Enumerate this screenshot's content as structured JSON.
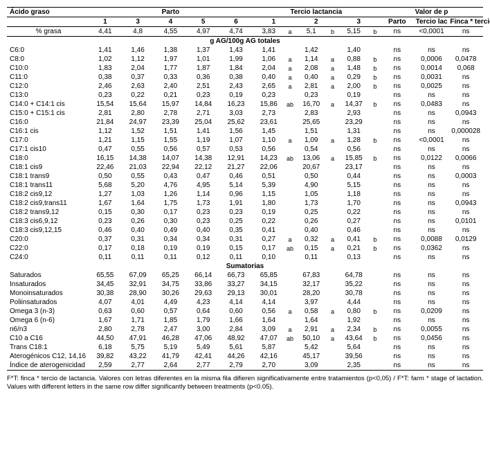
{
  "headers": {
    "acido": "Ácido graso",
    "parto": "Parto",
    "tercio": "Tercio lactancia",
    "valorp": "Valor de p",
    "parto_cols": [
      "1",
      "3",
      "4",
      "5",
      "6"
    ],
    "tercio_cols": [
      "1",
      "2",
      "3"
    ],
    "p_cols": [
      "Parto",
      "Tercio lac",
      "Finca * tercio"
    ],
    "pct_grasa_label": "% grasa",
    "pct_grasa_parto": [
      "4,41",
      "4,8",
      "4,55",
      "4,97",
      "4,74"
    ],
    "pct_grasa_tercio": [
      {
        "v": "3,83",
        "l": "a"
      },
      {
        "v": "5,1",
        "l": "b"
      },
      {
        "v": "5,15",
        "l": "b"
      }
    ],
    "pct_grasa_p": [
      "ns",
      "<0,0001",
      "ns"
    ],
    "section1": "g AG/100g AG totales",
    "section2": "Sumatorias"
  },
  "rows1": [
    {
      "label": "C6:0",
      "parto": [
        "1,41",
        "1,46",
        "1,38",
        "1,37",
        "1,43"
      ],
      "tercio": [
        {
          "v": "1,41",
          "l": ""
        },
        {
          "v": "1,42",
          "l": ""
        },
        {
          "v": "1,40",
          "l": ""
        }
      ],
      "p": [
        "ns",
        "ns",
        "ns"
      ]
    },
    {
      "label": "C8:0",
      "parto": [
        "1,02",
        "1,12",
        "1,97",
        "1,01",
        "1,99"
      ],
      "tercio": [
        {
          "v": "1,06",
          "l": "a"
        },
        {
          "v": "1,14",
          "l": "a"
        },
        {
          "v": "0,88",
          "l": "b"
        }
      ],
      "p": [
        "ns",
        "0,0006",
        "0,0478"
      ]
    },
    {
      "label": "C10:0",
      "parto": [
        "1,83",
        "2,04",
        "1,77",
        "1,87",
        "1,84"
      ],
      "tercio": [
        {
          "v": "2,04",
          "l": "a"
        },
        {
          "v": "2,08",
          "l": "a"
        },
        {
          "v": "1,48",
          "l": "b"
        }
      ],
      "p": [
        "ns",
        "0,0014",
        "0,068"
      ]
    },
    {
      "label": "C11:0",
      "parto": [
        "0,38",
        "0,37",
        "0,33",
        "0,36",
        "0,38"
      ],
      "tercio": [
        {
          "v": "0,40",
          "l": "a"
        },
        {
          "v": "0,40",
          "l": "a"
        },
        {
          "v": "0,29",
          "l": "b"
        }
      ],
      "p": [
        "ns",
        "0,0031",
        "ns"
      ]
    },
    {
      "label": "C12:0",
      "parto": [
        "2,46",
        "2,63",
        "2,40",
        "2,51",
        "2,43"
      ],
      "tercio": [
        {
          "v": "2,65",
          "l": "a"
        },
        {
          "v": "2,81",
          "l": "a"
        },
        {
          "v": "2,00",
          "l": "b"
        }
      ],
      "p": [
        "ns",
        "0,0025",
        "ns"
      ]
    },
    {
      "label": "C13:0",
      "parto": [
        "0,23",
        "0,22",
        "0,21",
        "0,23",
        "0,19"
      ],
      "tercio": [
        {
          "v": "0,23",
          "l": ""
        },
        {
          "v": "0,23",
          "l": ""
        },
        {
          "v": "0,19",
          "l": ""
        }
      ],
      "p": [
        "ns",
        "ns",
        "ns"
      ]
    },
    {
      "label": "C14:0 + C14:1 cis",
      "parto": [
        "15,54",
        "15,64",
        "15,97",
        "14,84",
        "16,23"
      ],
      "tercio": [
        {
          "v": "15,86",
          "l": "ab"
        },
        {
          "v": "16,70",
          "l": "a"
        },
        {
          "v": "14,37",
          "l": "b"
        }
      ],
      "p": [
        "ns",
        "0,0483",
        "ns"
      ]
    },
    {
      "label": "C15:0 + C15:1 cis",
      "parto": [
        "2,81",
        "2,80",
        "2,78",
        "2,71",
        "3,03"
      ],
      "tercio": [
        {
          "v": "2,73",
          "l": ""
        },
        {
          "v": "2,83",
          "l": ""
        },
        {
          "v": "2,93",
          "l": ""
        }
      ],
      "p": [
        "ns",
        "ns",
        "0,0943"
      ]
    },
    {
      "label": "C16:0",
      "parto": [
        "21,84",
        "24,97",
        "23,39",
        "25,04",
        "25,62"
      ],
      "tercio": [
        {
          "v": "23,61",
          "l": ""
        },
        {
          "v": "25,65",
          "l": ""
        },
        {
          "v": "23,29",
          "l": ""
        }
      ],
      "p": [
        "ns",
        "ns",
        "ns"
      ]
    },
    {
      "label": "C16:1 cis",
      "parto": [
        "1,12",
        "1,52",
        "1,51",
        "1,41",
        "1,56"
      ],
      "tercio": [
        {
          "v": "1,45",
          "l": ""
        },
        {
          "v": "1,51",
          "l": ""
        },
        {
          "v": "1,31",
          "l": ""
        }
      ],
      "p": [
        "ns",
        "ns",
        "0,000028"
      ]
    },
    {
      "label": "C17:0",
      "parto": [
        "1,21",
        "1,15",
        "1,55",
        "1,19",
        "1,07"
      ],
      "tercio": [
        {
          "v": "1,10",
          "l": "a"
        },
        {
          "v": "1,09",
          "l": "a"
        },
        {
          "v": "1,28",
          "l": "b"
        }
      ],
      "p": [
        "ns",
        "<0,0001",
        "ns"
      ]
    },
    {
      "label": "C17:1 cis10",
      "parto": [
        "0,47",
        "0,55",
        "0,56",
        "0,57",
        "0,53"
      ],
      "tercio": [
        {
          "v": "0,56",
          "l": ""
        },
        {
          "v": "0,54",
          "l": ""
        },
        {
          "v": "0,56",
          "l": ""
        }
      ],
      "p": [
        "ns",
        "ns",
        "ns"
      ]
    },
    {
      "label": "C18:0",
      "parto": [
        "16,15",
        "14,38",
        "14,07",
        "14,38",
        "12,91"
      ],
      "tercio": [
        {
          "v": "14,23",
          "l": "ab"
        },
        {
          "v": "13,06",
          "l": "a"
        },
        {
          "v": "15,85",
          "l": "b"
        }
      ],
      "p": [
        "ns",
        "0,0122",
        "0,0066"
      ]
    },
    {
      "label": "C18:1 cis9",
      "parto": [
        "22,46",
        "21,03",
        "22,94",
        "22,12",
        "21,27"
      ],
      "tercio": [
        {
          "v": "22,06",
          "l": ""
        },
        {
          "v": "20,67",
          "l": ""
        },
        {
          "v": "23,17",
          "l": ""
        }
      ],
      "p": [
        "ns",
        "ns",
        "ns"
      ]
    },
    {
      "label": "C18:1 trans9",
      "parto": [
        "0,50",
        "0,55",
        "0,43",
        "0,47",
        "0,46"
      ],
      "tercio": [
        {
          "v": "0,51",
          "l": ""
        },
        {
          "v": "0,50",
          "l": ""
        },
        {
          "v": "0,44",
          "l": ""
        }
      ],
      "p": [
        "ns",
        "ns",
        "0,0003"
      ]
    },
    {
      "label": "C18:1 trans11",
      "parto": [
        "5,68",
        "5,20",
        "4,76",
        "4,95",
        "5,14"
      ],
      "tercio": [
        {
          "v": "5,39",
          "l": ""
        },
        {
          "v": "4,90",
          "l": ""
        },
        {
          "v": "5,15",
          "l": ""
        }
      ],
      "p": [
        "ns",
        "ns",
        "ns"
      ]
    },
    {
      "label": "C18:2 cis9,12",
      "parto": [
        "1,27",
        "1,03",
        "1,26",
        "1,14",
        "0,96"
      ],
      "tercio": [
        {
          "v": "1,15",
          "l": ""
        },
        {
          "v": "1,05",
          "l": ""
        },
        {
          "v": "1,18",
          "l": ""
        }
      ],
      "p": [
        "ns",
        "ns",
        "ns"
      ]
    },
    {
      "label": "C18:2 cis9,trans11",
      "parto": [
        "1,67",
        "1,64",
        "1,75",
        "1,73",
        "1,91"
      ],
      "tercio": [
        {
          "v": "1,80",
          "l": ""
        },
        {
          "v": "1,73",
          "l": ""
        },
        {
          "v": "1,70",
          "l": ""
        }
      ],
      "p": [
        "ns",
        "ns",
        "0,0943"
      ]
    },
    {
      "label": "C18:2 trans9,12",
      "parto": [
        "0,15",
        "0,30",
        "0,17",
        "0,23",
        "0,23"
      ],
      "tercio": [
        {
          "v": "0,19",
          "l": ""
        },
        {
          "v": "0,25",
          "l": ""
        },
        {
          "v": "0,22",
          "l": ""
        }
      ],
      "p": [
        "ns",
        "ns",
        "ns"
      ]
    },
    {
      "label": "C18:3 cis6,9,12",
      "parto": [
        "0,23",
        "0,26",
        "0,30",
        "0,23",
        "0,25"
      ],
      "tercio": [
        {
          "v": "0,22",
          "l": ""
        },
        {
          "v": "0,26",
          "l": ""
        },
        {
          "v": "0,27",
          "l": ""
        }
      ],
      "p": [
        "ns",
        "ns",
        "0,0101"
      ]
    },
    {
      "label": "C18:3 cis9,12,15",
      "parto": [
        "0,46",
        "0,40",
        "0,49",
        "0,40",
        "0,35"
      ],
      "tercio": [
        {
          "v": "0,41",
          "l": ""
        },
        {
          "v": "0,40",
          "l": ""
        },
        {
          "v": "0,46",
          "l": ""
        }
      ],
      "p": [
        "ns",
        "ns",
        "ns"
      ]
    },
    {
      "label": "C20:0",
      "parto": [
        "0,37",
        "0,31",
        "0,34",
        "0,34",
        "0,31"
      ],
      "tercio": [
        {
          "v": "0,27",
          "l": "a"
        },
        {
          "v": "0,32",
          "l": "a"
        },
        {
          "v": "0,41",
          "l": "b"
        }
      ],
      "p": [
        "ns",
        "0,0088",
        "0,0129"
      ]
    },
    {
      "label": "C22:0",
      "parto": [
        "0,17",
        "0,18",
        "0,19",
        "0,19",
        "0,15"
      ],
      "tercio": [
        {
          "v": "0,17",
          "l": "ab"
        },
        {
          "v": "0,15",
          "l": "a"
        },
        {
          "v": "0,21",
          "l": "b"
        }
      ],
      "p": [
        "ns",
        "0,0362",
        "ns"
      ]
    },
    {
      "label": "C24:0",
      "parto": [
        "0,11",
        "0,11",
        "0,11",
        "0,12",
        "0,11"
      ],
      "tercio": [
        {
          "v": "0,10",
          "l": ""
        },
        {
          "v": "0,11",
          "l": ""
        },
        {
          "v": "0,13",
          "l": ""
        }
      ],
      "p": [
        "ns",
        "ns",
        "ns"
      ]
    }
  ],
  "rows2": [
    {
      "label": "Saturados",
      "parto": [
        "65,55",
        "67,09",
        "65,25",
        "66,14",
        "66,73"
      ],
      "tercio": [
        {
          "v": "65,85",
          "l": ""
        },
        {
          "v": "67,83",
          "l": ""
        },
        {
          "v": "64,78",
          "l": ""
        }
      ],
      "p": [
        "ns",
        "ns",
        "ns"
      ]
    },
    {
      "label": "Insaturados",
      "parto": [
        "34,45",
        "32,91",
        "34,75",
        "33,86",
        "33,27"
      ],
      "tercio": [
        {
          "v": "34,15",
          "l": ""
        },
        {
          "v": "32,17",
          "l": ""
        },
        {
          "v": "35,22",
          "l": ""
        }
      ],
      "p": [
        "ns",
        "ns",
        "ns"
      ]
    },
    {
      "label": "Monoinsaturados",
      "parto": [
        "30,38",
        "28,90",
        "30,26",
        "29,63",
        "29,13"
      ],
      "tercio": [
        {
          "v": "30,01",
          "l": ""
        },
        {
          "v": "28,20",
          "l": ""
        },
        {
          "v": "30,78",
          "l": ""
        }
      ],
      "p": [
        "ns",
        "ns",
        "ns"
      ]
    },
    {
      "label": "Poliinsaturados",
      "parto": [
        "4,07",
        "4,01",
        "4,49",
        "4,23",
        "4,14"
      ],
      "tercio": [
        {
          "v": "4,14",
          "l": ""
        },
        {
          "v": "3,97",
          "l": ""
        },
        {
          "v": "4,44",
          "l": ""
        }
      ],
      "p": [
        "ns",
        "ns",
        "ns"
      ]
    },
    {
      "label": "Omega 3 (n-3)",
      "parto": [
        "0,63",
        "0,60",
        "0,57",
        "0,64",
        "0,60"
      ],
      "tercio": [
        {
          "v": "0,56",
          "l": "a"
        },
        {
          "v": "0,58",
          "l": "a"
        },
        {
          "v": "0,80",
          "l": "b"
        }
      ],
      "p": [
        "ns",
        "0,0209",
        "ns"
      ]
    },
    {
      "label": "Omega 6 (n-6)",
      "parto": [
        "1,67",
        "1,71",
        "1,85",
        "1,79",
        "1,66"
      ],
      "tercio": [
        {
          "v": "1,64",
          "l": ""
        },
        {
          "v": "1,64",
          "l": ""
        },
        {
          "v": "1,92",
          "l": ""
        }
      ],
      "p": [
        "ns",
        "ns",
        "ns"
      ]
    },
    {
      "label": "n6/n3",
      "parto": [
        "2,80",
        "2,78",
        "2,47",
        "3,00",
        "2,84"
      ],
      "tercio": [
        {
          "v": "3,09",
          "l": "a"
        },
        {
          "v": "2,91",
          "l": "a"
        },
        {
          "v": "2,34",
          "l": "b"
        }
      ],
      "p": [
        "ns",
        "0,0055",
        "ns"
      ]
    },
    {
      "label": "C10 a C16",
      "parto": [
        "44,50",
        "47,91",
        "46,28",
        "47,06",
        "48,92"
      ],
      "tercio": [
        {
          "v": "47,07",
          "l": "ab"
        },
        {
          "v": "50,10",
          "l": "a"
        },
        {
          "v": "43,64",
          "l": "b"
        }
      ],
      "p": [
        "ns",
        "0,0456",
        "ns"
      ]
    },
    {
      "label": "Trans C18:1",
      "parto": [
        "6,18",
        "5,75",
        "5,19",
        "5,49",
        "5,61"
      ],
      "tercio": [
        {
          "v": "5,87",
          "l": ""
        },
        {
          "v": "5,42",
          "l": ""
        },
        {
          "v": "5,64",
          "l": ""
        }
      ],
      "p": [
        "ns",
        "ns",
        "ns"
      ]
    },
    {
      "label": "Aterogénicos C12, 14,16",
      "parto": [
        "39,82",
        "43,22",
        "41,79",
        "42,41",
        "44,26"
      ],
      "tercio": [
        {
          "v": "42,16",
          "l": ""
        },
        {
          "v": "45,17",
          "l": ""
        },
        {
          "v": "39,56",
          "l": ""
        }
      ],
      "p": [
        "ns",
        "ns",
        "ns"
      ],
      "multiline": true
    },
    {
      "label": "Índice de aterogenicidad",
      "parto": [
        "2,59",
        "2,77",
        "2,64",
        "2,77",
        "2,79"
      ],
      "tercio": [
        {
          "v": "2,70",
          "l": ""
        },
        {
          "v": "3,09",
          "l": ""
        },
        {
          "v": "2,35",
          "l": ""
        }
      ],
      "p": [
        "ns",
        "ns",
        "ns"
      ],
      "multiline": true
    }
  ],
  "footnote": "F*T: finca * tercio de lactancia. Valores con letras diferentes en la misma fila difieren significativamente entre tratamientos (p<0,05) / F*T: farm * stage of lactation. Values with different letters in the same row differ significantly between treatments (p<0.05)."
}
